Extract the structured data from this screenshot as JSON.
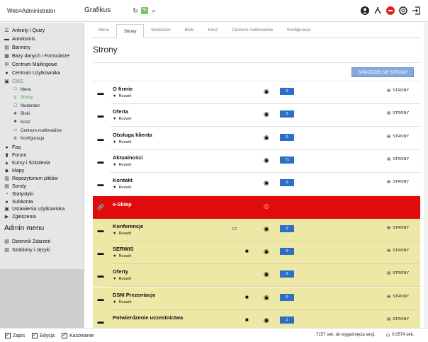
{
  "header": {
    "brand": "Web",
    "brand_suffix": "Administrator",
    "section": "Grafikus"
  },
  "sidebar": {
    "items": [
      {
        "label": "Ankiety i Quizy",
        "icon": "list-icon"
      },
      {
        "label": "Autokomis",
        "icon": "car-icon"
      },
      {
        "label": "Bannery",
        "icon": "banner-icon"
      },
      {
        "label": "Bazy danych i Formularze",
        "icon": "database-icon"
      },
      {
        "label": "Centrum Mailingowe",
        "icon": "mail-icon"
      },
      {
        "label": "Centrum Użytkownika",
        "icon": "user-icon"
      },
      {
        "label": "CMS",
        "icon": "cms-icon"
      }
    ],
    "cms_sub": [
      {
        "label": "Menu",
        "icon": "folder-icon"
      },
      {
        "label": "Strony",
        "icon": "page-icon"
      },
      {
        "label": "Moderator",
        "icon": "moderator-icon"
      },
      {
        "label": "Bloki",
        "icon": "blocks-icon"
      },
      {
        "label": "Kosz",
        "icon": "trash-icon"
      },
      {
        "label": "Centrum multimediów",
        "icon": "media-icon"
      },
      {
        "label": "Konfiguracja",
        "icon": "gear-icon"
      }
    ],
    "items2": [
      {
        "label": "Faq",
        "icon": "faq-icon"
      },
      {
        "label": "Forum",
        "icon": "forum-icon"
      },
      {
        "label": "Kursy i Szkolenia",
        "icon": "course-icon"
      },
      {
        "label": "Mapy",
        "icon": "map-icon"
      },
      {
        "label": "Repozytorium plików",
        "icon": "repository-icon"
      },
      {
        "label": "Sondy",
        "icon": "poll-icon"
      },
      {
        "label": "Statystyki",
        "icon": "stats-icon"
      },
      {
        "label": "Subkonta",
        "icon": "subaccount-icon"
      },
      {
        "label": "Ustawienia użytkownika",
        "icon": "settings-icon"
      },
      {
        "label": "Zgłoszenia",
        "icon": "ticket-icon"
      }
    ],
    "admin_heading": "Admin menu",
    "admin_items": [
      {
        "label": "Dziennik Zdarzeń",
        "icon": "log-icon"
      },
      {
        "label": "Szablony i Języki",
        "icon": "template-icon"
      }
    ]
  },
  "tabs": [
    "Menu",
    "Strony",
    "Moderator",
    "Bloki",
    "Kosz",
    "Centrum multimediów",
    "Konfiguracja"
  ],
  "page_title": "Strony",
  "button_samo": "SAMODZIELNE STRONY",
  "expand_label": "Rozwiń",
  "strony_label": "STRONY",
  "rows": [
    {
      "name": "O firmie",
      "count": "0",
      "style": "white",
      "expand": true,
      "strony": true,
      "lock": false,
      "comment": false
    },
    {
      "name": "Oferta",
      "count": "0",
      "style": "white",
      "expand": true,
      "strony": true,
      "lock": false,
      "comment": false
    },
    {
      "name": "Obsługa klienta",
      "count": "0",
      "style": "white",
      "expand": true,
      "strony": true,
      "lock": false,
      "comment": false
    },
    {
      "name": "Aktualności",
      "count": "71",
      "style": "white",
      "expand": true,
      "strony": true,
      "lock": false,
      "comment": false
    },
    {
      "name": "Kontakt",
      "count": "0",
      "style": "white",
      "expand": true,
      "strony": true,
      "lock": false,
      "comment": false
    },
    {
      "name": "e-Sklep",
      "count": "",
      "style": "red",
      "expand": false,
      "strony": false,
      "lock": false,
      "comment": false
    },
    {
      "name": "Konferencje",
      "count": "0",
      "style": "yellow",
      "expand": true,
      "strony": true,
      "lock": false,
      "comment": true
    },
    {
      "name": "SERWIS",
      "count": "0",
      "style": "yellow",
      "expand": true,
      "strony": true,
      "lock": true,
      "comment": false
    },
    {
      "name": "Oferty",
      "count": "0",
      "style": "yellow",
      "expand": true,
      "strony": true,
      "lock": false,
      "comment": false
    },
    {
      "name": "DSM Prezentacje",
      "count": "0",
      "style": "yellow",
      "expand": true,
      "strony": true,
      "lock": true,
      "comment": false
    },
    {
      "name": "Potwierdzenie uczestnictwa",
      "count": "1",
      "style": "yellow",
      "expand": false,
      "strony": true,
      "lock": true,
      "comment": false
    }
  ],
  "footer": {
    "zapis": "Zapis",
    "edycja": "Edycja",
    "kasowanie": "Kasowanie",
    "session": "7157 sek. do wygaśnięcia sesji.",
    "time": "0.0574 sek."
  },
  "colors": {
    "accent": "#2e6fc6",
    "active_green": "#4aa34a",
    "red_row": "#e00b0b",
    "yellow_row": "#eee8a7"
  }
}
